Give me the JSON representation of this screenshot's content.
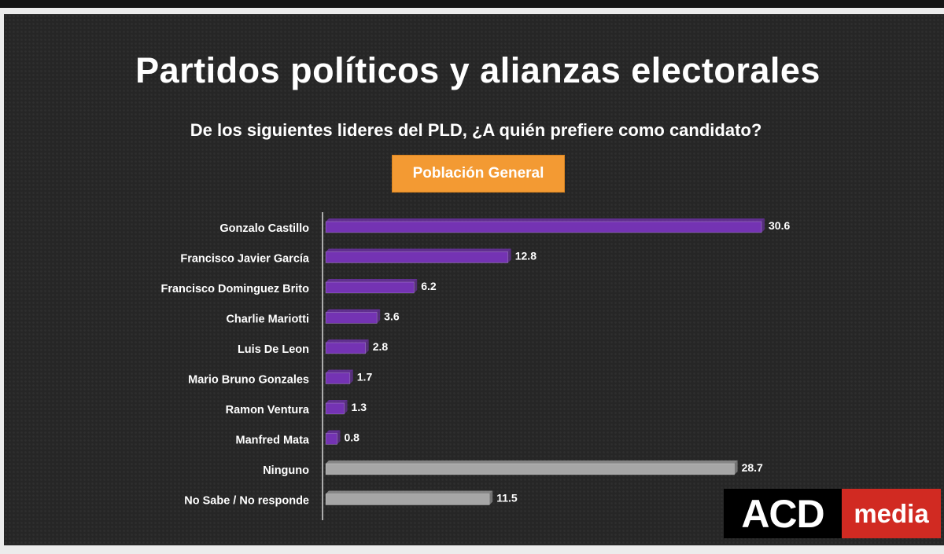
{
  "header": {
    "title": "Partidos políticos y alianzas electorales",
    "subtitle": "De los siguientes lideres del PLD, ¿A quién prefiere como candidato?",
    "badge": "Población General"
  },
  "logo": {
    "part1": "ACD",
    "part2": "media"
  },
  "colors": {
    "purple": "#7433b3",
    "gray": "#a6a6a6",
    "badge": "#f39a33",
    "logo_red": "#d12a22"
  },
  "chart_data": {
    "type": "bar",
    "orientation": "horizontal",
    "categories": [
      "Gonzalo Castillo",
      "Francisco Javier García",
      "Francisco Dominguez Brito",
      "Charlie Mariotti",
      "Luis De Leon",
      "Mario Bruno Gonzales",
      "Ramon Ventura",
      "Manfred Mata",
      "Ninguno",
      "No Sabe / No responde"
    ],
    "values": [
      30.6,
      12.8,
      6.2,
      3.6,
      2.8,
      1.7,
      1.3,
      0.8,
      28.7,
      11.5
    ],
    "bar_colors": [
      "purple",
      "purple",
      "purple",
      "purple",
      "purple",
      "purple",
      "purple",
      "purple",
      "gray",
      "gray"
    ],
    "xlim": [
      0,
      30.6
    ],
    "data_labels": true,
    "grid": false,
    "legend": "none"
  }
}
